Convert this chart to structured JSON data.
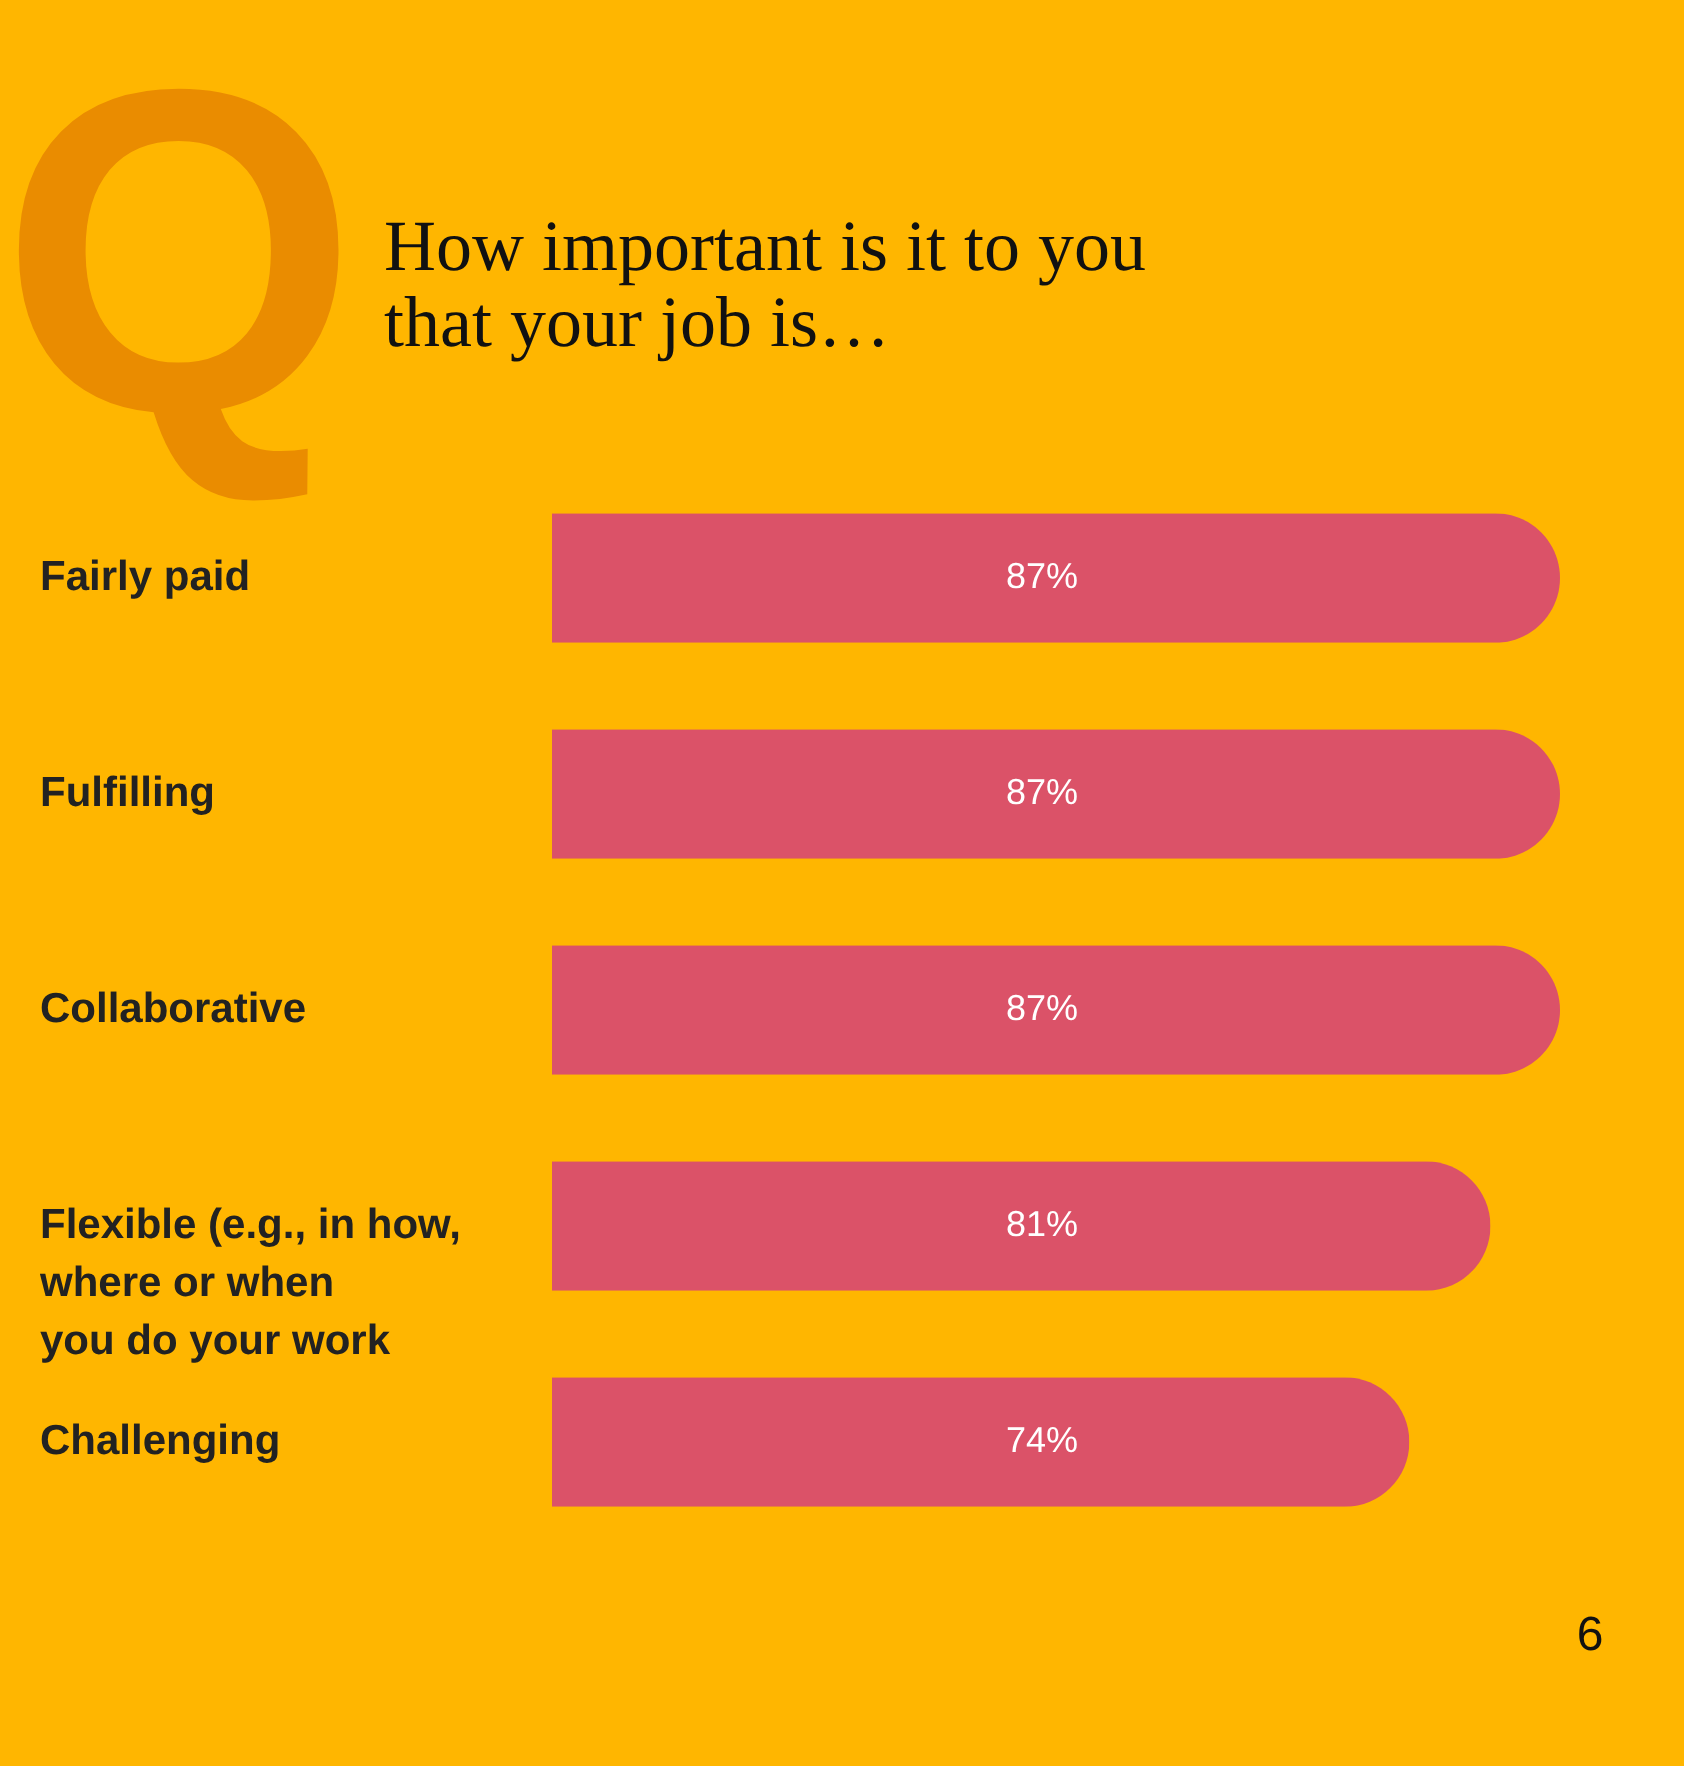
{
  "chart_data": {
    "type": "bar",
    "orientation": "horizontal",
    "title": "How important is it to you\nthat your job is…",
    "categories": [
      "Fairly paid",
      "Fulfilling",
      "Collaborative",
      "Flexible (e.g., in how,\nwhere or when\nyou do your work",
      "Challenging"
    ],
    "values": [
      87,
      87,
      87,
      81,
      74
    ],
    "value_labels": [
      "87%",
      "87%",
      "87%",
      "81%",
      "74%"
    ],
    "color": "#db5268",
    "annotations": [
      "Q",
      "6"
    ]
  }
}
